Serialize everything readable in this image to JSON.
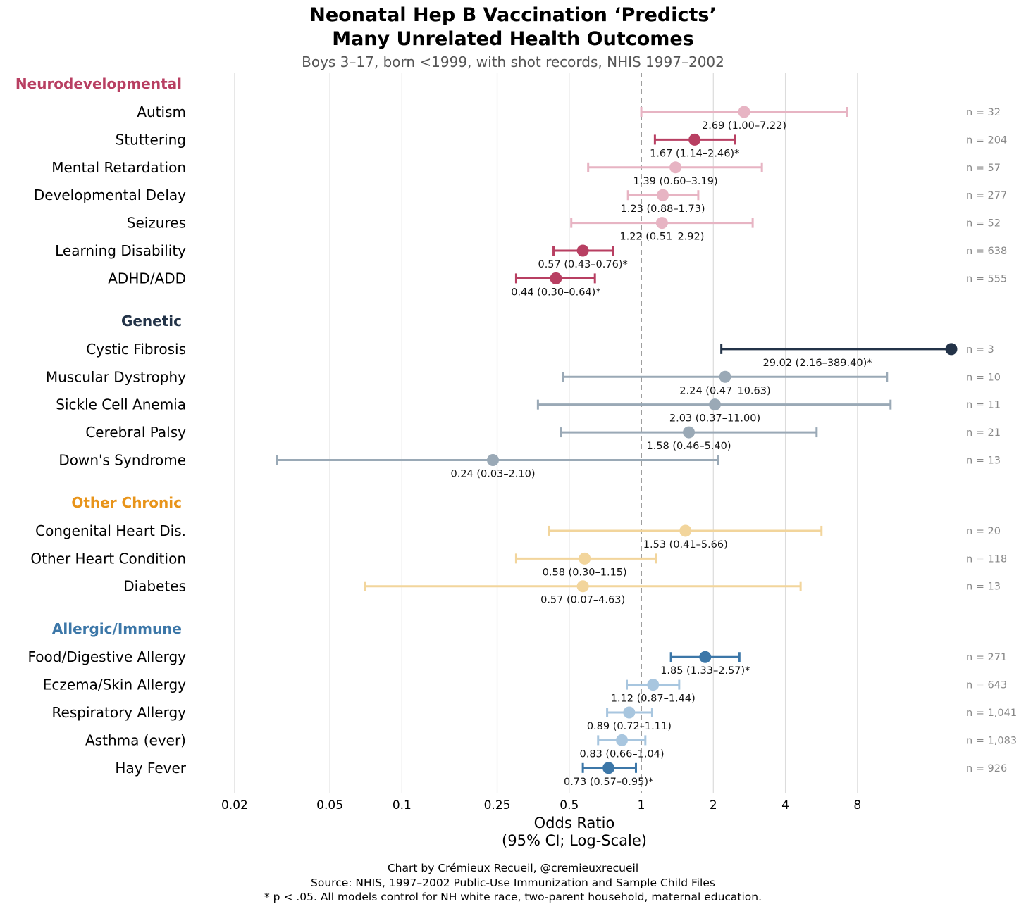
{
  "chart_data": {
    "type": "forest",
    "title": [
      "Neonatal Hep B Vaccination ‘Predicts’",
      "Many Unrelated Health Outcomes"
    ],
    "subtitle": "Boys 3–17, born <1999, with shot records, NHIS 1997–2002",
    "xlabel": [
      "Odds Ratio",
      "(95% CI; Log-Scale)"
    ],
    "x_scale": "log",
    "xlim": [
      0.016,
      20
    ],
    "x_ticks": [
      {
        "value": 0.02,
        "label": "0.02"
      },
      {
        "value": 0.05,
        "label": "0.05"
      },
      {
        "value": 0.1,
        "label": "0.1"
      },
      {
        "value": 0.25,
        "label": "0.25"
      },
      {
        "value": 0.5,
        "label": "0.5"
      },
      {
        "value": 1,
        "label": "1"
      },
      {
        "value": 2,
        "label": "2"
      },
      {
        "value": 4,
        "label": "4"
      },
      {
        "value": 8,
        "label": "8"
      }
    ],
    "reference_line": 1,
    "grid": "vertical",
    "groups": [
      {
        "name": "Neurodevelopmental",
        "color": "#b83f62",
        "items": [
          {
            "label": "Autism",
            "or": 2.69,
            "lo": 1.0,
            "hi": 7.22,
            "sig": false,
            "text": "2.69 (1.00–7.22)",
            "n": "n = 32"
          },
          {
            "label": "Stuttering",
            "or": 1.67,
            "lo": 1.14,
            "hi": 2.46,
            "sig": true,
            "text": "1.67 (1.14–2.46)*",
            "n": "n = 204"
          },
          {
            "label": "Mental Retardation",
            "or": 1.39,
            "lo": 0.6,
            "hi": 3.19,
            "sig": false,
            "text": "1.39 (0.60–3.19)",
            "n": "n = 57"
          },
          {
            "label": "Developmental Delay",
            "or": 1.23,
            "lo": 0.88,
            "hi": 1.73,
            "sig": false,
            "text": "1.23 (0.88–1.73)",
            "n": "n = 277"
          },
          {
            "label": "Seizures",
            "or": 1.22,
            "lo": 0.51,
            "hi": 2.92,
            "sig": false,
            "text": "1.22 (0.51–2.92)",
            "n": "n = 52"
          },
          {
            "label": "Learning Disability",
            "or": 0.57,
            "lo": 0.43,
            "hi": 0.76,
            "sig": true,
            "text": "0.57 (0.43–0.76)*",
            "n": "n = 638"
          },
          {
            "label": "ADHD/ADD",
            "or": 0.44,
            "lo": 0.3,
            "hi": 0.64,
            "sig": true,
            "text": "0.44 (0.30–0.64)*",
            "n": "n = 555"
          }
        ]
      },
      {
        "name": "Genetic",
        "color": "#233348",
        "items": [
          {
            "label": "Cystic Fibrosis",
            "or": 29.02,
            "lo": 2.16,
            "hi": 389.4,
            "sig": true,
            "text": "29.02 (2.16–389.40)*",
            "n": "n = 3"
          },
          {
            "label": "Muscular Dystrophy",
            "or": 2.24,
            "lo": 0.47,
            "hi": 10.63,
            "sig": false,
            "text": "2.24 (0.47–10.63)",
            "n": "n = 10"
          },
          {
            "label": "Sickle Cell Anemia",
            "or": 2.03,
            "lo": 0.37,
            "hi": 11.0,
            "sig": false,
            "text": "2.03 (0.37–11.00)",
            "n": "n = 11"
          },
          {
            "label": "Cerebral Palsy",
            "or": 1.58,
            "lo": 0.46,
            "hi": 5.4,
            "sig": false,
            "text": "1.58 (0.46–5.40)",
            "n": "n = 21"
          },
          {
            "label": "Down's Syndrome",
            "or": 0.24,
            "lo": 0.03,
            "hi": 2.1,
            "sig": false,
            "text": "0.24 (0.03–2.10)",
            "n": "n = 13"
          }
        ]
      },
      {
        "name": "Other Chronic",
        "color": "#e8941a",
        "items": [
          {
            "label": "Congenital Heart Dis.",
            "or": 1.53,
            "lo": 0.41,
            "hi": 5.66,
            "sig": false,
            "text": "1.53 (0.41–5.66)",
            "n": "n = 20"
          },
          {
            "label": "Other Heart Condition",
            "or": 0.58,
            "lo": 0.3,
            "hi": 1.15,
            "sig": false,
            "text": "0.58 (0.30–1.15)",
            "n": "n = 118"
          },
          {
            "label": "Diabetes",
            "or": 0.57,
            "lo": 0.07,
            "hi": 4.63,
            "sig": false,
            "text": "0.57 (0.07–4.63)",
            "n": "n = 13"
          }
        ]
      },
      {
        "name": "Allergic/Immune",
        "color": "#3c77a8",
        "items": [
          {
            "label": "Food/Digestive Allergy",
            "or": 1.85,
            "lo": 1.33,
            "hi": 2.57,
            "sig": true,
            "text": "1.85 (1.33–2.57)*",
            "n": "n = 271"
          },
          {
            "label": "Eczema/Skin Allergy",
            "or": 1.12,
            "lo": 0.87,
            "hi": 1.44,
            "sig": false,
            "text": "1.12 (0.87–1.44)",
            "n": "n = 643"
          },
          {
            "label": "Respiratory Allergy",
            "or": 0.89,
            "lo": 0.72,
            "hi": 1.11,
            "sig": false,
            "text": "0.89 (0.72–1.11)",
            "n": "n = 1,041"
          },
          {
            "label": "Asthma (ever)",
            "or": 0.83,
            "lo": 0.66,
            "hi": 1.04,
            "sig": false,
            "text": "0.83 (0.66–1.04)",
            "n": "n = 1,083"
          },
          {
            "label": "Hay Fever",
            "or": 0.73,
            "lo": 0.57,
            "hi": 0.95,
            "sig": true,
            "text": "0.73 (0.57–0.95)*",
            "n": "n = 926"
          }
        ]
      }
    ],
    "series_colors": {
      "Neurodevelopmental": {
        "sig": "#b83f62",
        "nonsig": "#e7b4c3"
      },
      "Genetic": {
        "sig": "#233348",
        "nonsig": "#9aa9b6"
      },
      "Other Chronic": {
        "sig": "#e8941a",
        "nonsig": "#f2d59c"
      },
      "Allergic/Immune": {
        "sig": "#3c77a8",
        "nonsig": "#a8c6df"
      }
    }
  },
  "footer": [
    "Chart by Crémieux Recueil, @cremieuxrecueil",
    "Source: NHIS, 1997–2002 Public-Use Immunization and Sample Child Files",
    "* p < .05. All models control for NH white race, two-parent household, maternal education."
  ]
}
